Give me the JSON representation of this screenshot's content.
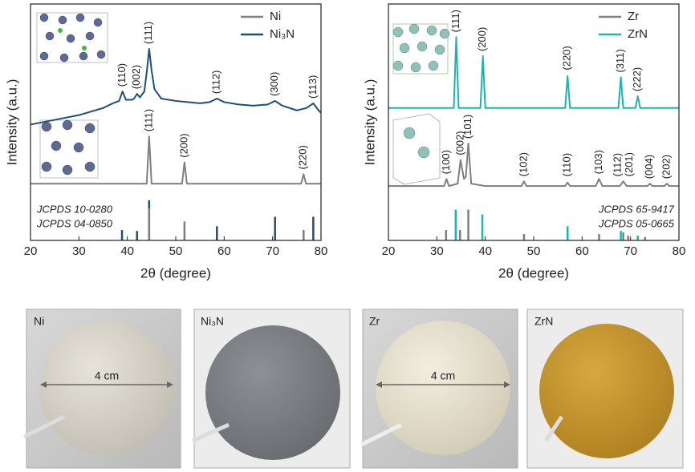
{
  "chart_data": [
    {
      "type": "line",
      "xlabel": "2θ (degree)",
      "ylabel": "Intensity (a.u.)",
      "xlim": [
        20,
        80
      ],
      "xticks": [
        20,
        30,
        40,
        50,
        60,
        70,
        80
      ],
      "ylim": [
        0,
        100
      ],
      "legend": "upper right",
      "refs_legend": "lower left",
      "series": [
        {
          "name": "Ni",
          "color": "#7f7f7f",
          "x": [
            20,
            30,
            40,
            44.0,
            44.5,
            45.0,
            51.3,
            51.8,
            52.3,
            60,
            70,
            75.9,
            76.4,
            76.9,
            80
          ],
          "values": [
            24,
            24,
            24,
            24,
            44,
            24,
            24,
            33,
            24,
            24,
            24,
            24,
            28,
            24,
            24
          ],
          "annotations": [
            {
              "text": "(111)",
              "x": 44.5,
              "y": 46
            },
            {
              "text": "(200)",
              "x": 51.8,
              "y": 35
            },
            {
              "text": "(220)",
              "x": 76.4,
              "y": 30
            }
          ]
        },
        {
          "name": "Ni₃N",
          "color": "#1f4e79",
          "x": [
            20,
            25,
            30,
            35,
            37,
            38.3,
            39,
            39.7,
            41,
            41.4,
            42,
            42.6,
            43.5,
            44,
            44.5,
            45,
            45.6,
            47,
            50,
            55,
            57,
            58.5,
            60,
            63,
            66,
            69,
            70.5,
            72,
            75,
            77,
            78.4,
            79.5,
            80
          ],
          "values": [
            49,
            51,
            53,
            56,
            58,
            59,
            63,
            59.5,
            59.5,
            60,
            62,
            60.5,
            63,
            71,
            81,
            72,
            64,
            60,
            59,
            58,
            58.5,
            60,
            58.5,
            57.5,
            57,
            57.5,
            59,
            57,
            55,
            56,
            58,
            55,
            54
          ],
          "annotations": [
            {
              "text": "(110)",
              "x": 39,
              "y": 65
            },
            {
              "text": "(002)",
              "x": 42,
              "y": 64
            },
            {
              "text": "(111)",
              "x": 44.5,
              "y": 83
            },
            {
              "text": "(112)",
              "x": 58.5,
              "y": 62
            },
            {
              "text": "(300)",
              "x": 70.5,
              "y": 61
            },
            {
              "text": "(113)",
              "x": 78.4,
              "y": 60
            }
          ]
        }
      ],
      "references": [
        {
          "name": "JCPDS 10-0280",
          "color": "#1f4e79",
          "positions": [
            38.9,
            42.0,
            44.5,
            58.5,
            70.5,
            78.4
          ],
          "values": [
            4.4,
            4,
            17,
            6,
            10,
            10
          ]
        },
        {
          "name": "JCPDS 04-0850",
          "color": "#7f7f7f",
          "positions": [
            44.5,
            51.8,
            76.4
          ],
          "values": [
            13.5,
            8,
            4.4
          ]
        }
      ]
    },
    {
      "type": "line",
      "xlabel": "2θ (degree)",
      "ylabel": "Intensity (a.u.)",
      "xlim": [
        20,
        80
      ],
      "xticks": [
        20,
        30,
        40,
        50,
        60,
        70,
        80
      ],
      "ylim": [
        0,
        100
      ],
      "legend": "upper right",
      "refs_legend": "lower right",
      "series": [
        {
          "name": "Zr",
          "color": "#7f7f7f",
          "x": [
            20,
            30,
            31.5,
            32,
            32.5,
            34.3,
            34.9,
            35.6,
            36.0,
            36.5,
            37.1,
            40,
            47.5,
            48,
            48.5,
            56.5,
            57,
            57.5,
            62.8,
            63.5,
            64.2,
            67.8,
            68.5,
            69.2,
            73.5,
            74,
            74.5,
            77,
            77.5,
            78,
            80
          ],
          "values": [
            23,
            23,
            23,
            26,
            23,
            24,
            34,
            26,
            27,
            41,
            24,
            23,
            23,
            25,
            23,
            23,
            24.5,
            23,
            23,
            26,
            23,
            23,
            25,
            23,
            23,
            24,
            23,
            23,
            24,
            23,
            23
          ],
          "annotations": [
            {
              "text": "(100)",
              "x": 32,
              "y": 28
            },
            {
              "text": "(002)",
              "x": 34.9,
              "y": 36
            },
            {
              "text": "(101)",
              "x": 36.5,
              "y": 43
            },
            {
              "text": "(102)",
              "x": 48,
              "y": 27
            },
            {
              "text": "(110)",
              "x": 57,
              "y": 27
            },
            {
              "text": "(103)",
              "x": 63.5,
              "y": 28
            },
            {
              "text": "(112)",
              "x": 67.4,
              "y": 27
            },
            {
              "text": "(201)",
              "x": 69.8,
              "y": 27
            },
            {
              "text": "(004)",
              "x": 74,
              "y": 26
            },
            {
              "text": "(202)",
              "x": 77.5,
              "y": 26
            }
          ]
        },
        {
          "name": "ZrN",
          "color": "#1fb3ad",
          "x": [
            20,
            33.5,
            34,
            34.5,
            39,
            39.5,
            40,
            56.5,
            57,
            57.5,
            67.5,
            68,
            68.5,
            71,
            71.5,
            72,
            80
          ],
          "values": [
            56,
            56,
            86,
            56,
            56,
            78,
            56,
            56,
            69.5,
            56,
            56,
            69,
            56,
            56,
            61,
            56,
            56
          ],
          "annotations": [
            {
              "text": "(111)",
              "x": 34,
              "y": 88
            },
            {
              "text": "(200)",
              "x": 39.5,
              "y": 80
            },
            {
              "text": "(220)",
              "x": 57,
              "y": 72
            },
            {
              "text": "(311)",
              "x": 68,
              "y": 71
            },
            {
              "text": "(222)",
              "x": 71.5,
              "y": 63
            }
          ]
        }
      ],
      "references": [
        {
          "name": "JCPDS 65-9417",
          "color": "#1fb3ad",
          "positions": [
            33.9,
            39.4,
            57.0,
            68.0,
            71.5
          ],
          "values": [
            13,
            11,
            6,
            4,
            2
          ]
        },
        {
          "name": "JCPDS 05-0665",
          "color": "#7f7f7f",
          "positions": [
            31.9,
            34.8,
            36.5,
            48.0,
            63.5,
            68.5,
            69.5,
            73.0
          ],
          "values": [
            4.4,
            4.4,
            13,
            2.7,
            2.7,
            3.4,
            2,
            1.4
          ]
        }
      ]
    }
  ],
  "photos": [
    {
      "label": "Ni",
      "scale": "4 cm"
    },
    {
      "label": "Ni₃N"
    },
    {
      "label": "Zr",
      "scale": "4 cm"
    },
    {
      "label": "ZrN"
    }
  ]
}
